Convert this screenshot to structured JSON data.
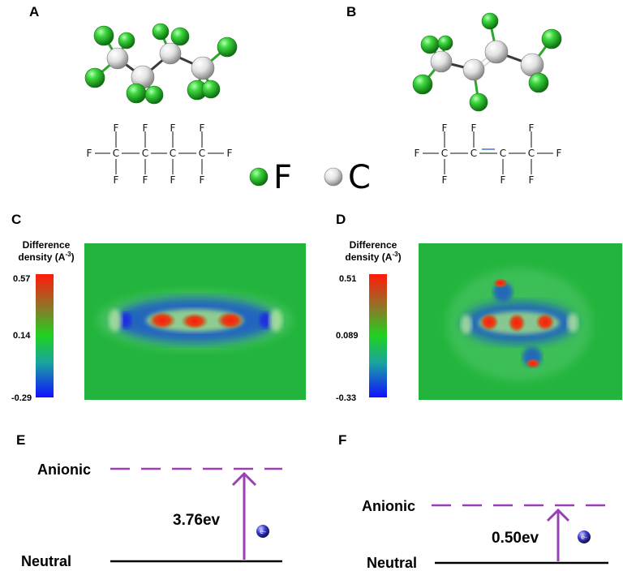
{
  "panels": {
    "A": {
      "label": "A",
      "formula": {
        "atoms": [
          "F",
          "C"
        ]
      }
    },
    "B": {
      "label": "B",
      "formula": {
        "atoms": [
          "F",
          "C"
        ]
      }
    },
    "C": {
      "label": "C",
      "colorbar": {
        "title_line1": "Difference",
        "title_line2": "density (A",
        "title_exp": "-3",
        "title_close": ")",
        "max": "0.57",
        "mid": "0.14",
        "min": "-0.29"
      }
    },
    "D": {
      "label": "D",
      "colorbar": {
        "title_line1": "Difference",
        "title_line2": "density (A",
        "title_exp": "-3",
        "title_close": ")",
        "max": "0.51",
        "mid": "0.089",
        "min": "-0.33"
      }
    },
    "E": {
      "label": "E",
      "upper_level": "Anionic",
      "lower_level": "Neutral",
      "energy": "3.76ev",
      "electron": "e-"
    },
    "F": {
      "label": "F",
      "upper_level": "Anionic",
      "lower_level": "Neutral",
      "energy": "0.50ev",
      "electron": "e-"
    }
  },
  "legend": {
    "fluorine": "F",
    "carbon": "C",
    "fluorine_color": "#22c322",
    "carbon_color": "#e4e4e4"
  },
  "colors": {
    "level_line": "#9a3fb6",
    "map_bg": "#22b43c",
    "positive": "#e41b12",
    "negative": "#1c3fd8"
  }
}
